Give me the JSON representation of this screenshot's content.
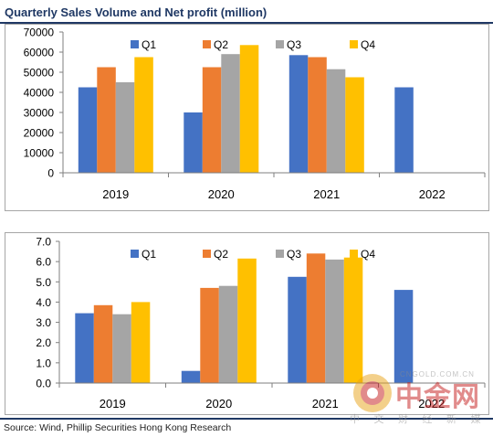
{
  "title": "Quarterly Sales Volume and Net profit (million)",
  "source": "Source: Wind, Phillip Securities Hong Kong Research",
  "colors": {
    "Q1": "#4472c4",
    "Q2": "#ed7d31",
    "Q3": "#a5a5a5",
    "Q4": "#ffc000",
    "title": "#1f3864",
    "frame": "#a6a6a6"
  },
  "watermark": {
    "site": "CNGOLD.COM.CN",
    "brand": "中金网",
    "tagline": "中 文 财 经 新 媒 体",
    "logo": "cngold-logo-icon"
  },
  "chart_data": [
    {
      "type": "bar",
      "categories": [
        "2019",
        "2020",
        "2021",
        "2022"
      ],
      "series": [
        {
          "name": "Q1",
          "values": [
            42500,
            30000,
            58500,
            42500
          ]
        },
        {
          "name": "Q2",
          "values": [
            52500,
            52500,
            57500,
            null
          ]
        },
        {
          "name": "Q3",
          "values": [
            45000,
            59000,
            51500,
            null
          ]
        },
        {
          "name": "Q4",
          "values": [
            57500,
            63500,
            47500,
            null
          ]
        }
      ],
      "ylim": [
        0,
        70000
      ],
      "yticks": [
        "0",
        "10000",
        "20000",
        "30000",
        "40000",
        "50000",
        "60000",
        "70000"
      ],
      "grid": false,
      "legend": "top"
    },
    {
      "type": "bar",
      "categories": [
        "2019",
        "2020",
        "2021",
        "2022"
      ],
      "series": [
        {
          "name": "Q1",
          "values": [
            3.45,
            0.6,
            5.25,
            4.6
          ]
        },
        {
          "name": "Q2",
          "values": [
            3.85,
            4.7,
            6.4,
            null
          ]
        },
        {
          "name": "Q3",
          "values": [
            3.4,
            4.8,
            6.1,
            null
          ]
        },
        {
          "name": "Q4",
          "values": [
            4.0,
            6.15,
            6.2,
            null
          ]
        }
      ],
      "ylim": [
        0,
        7
      ],
      "yticks": [
        "0.0",
        "1.0",
        "2.0",
        "3.0",
        "4.0",
        "5.0",
        "6.0",
        "7.0"
      ],
      "grid": false,
      "legend": "top"
    }
  ]
}
